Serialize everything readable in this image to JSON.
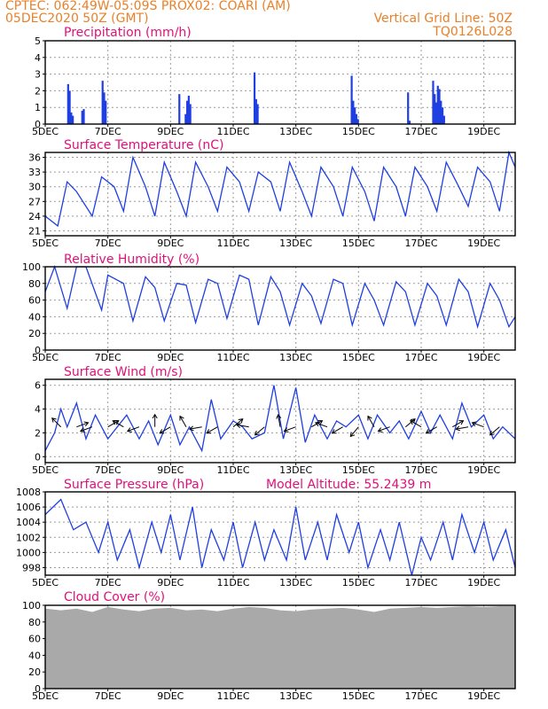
{
  "header": {
    "left_line1": "CPTEC:   062:49W-05:09S   PROX02: COARI (AM)",
    "left_line2": "05DEC2020 50Z (GMT)",
    "right_line1": "Vertical Grid Line: 50Z",
    "right_line2": "TQ0126L028"
  },
  "panels": {
    "precip": {
      "title": "Precipitation (mm/h)"
    },
    "temp": {
      "title": "Surface Temperature (nC)"
    },
    "rh": {
      "title": "Relative Humidity (%)"
    },
    "wind": {
      "title": "Surface Wind (m/s)"
    },
    "pres": {
      "title": "Surface Pressure (hPa)",
      "extra": "Model Altitude: 55.2439 m"
    },
    "cloud": {
      "title": "Cloud Cover (%)"
    }
  },
  "colors": {
    "line": "#1f3fe0",
    "bar": "#1f3fe0",
    "cloud": "#a9a9a9",
    "header": "#e8812a",
    "title": "#e0107a"
  },
  "chart_data": [
    {
      "type": "bar",
      "title": "Precipitation (mm/h)",
      "x_ticks": [
        "5DEC",
        "7DEC",
        "9DEC",
        "11DEC",
        "13DEC",
        "15DEC",
        "17DEC",
        "19DEC"
      ],
      "ylim": [
        0,
        5
      ],
      "y_ticks": [
        0,
        1,
        2,
        3,
        4,
        5
      ],
      "grid": true,
      "x_day": [
        0.7,
        0.75,
        0.8,
        0.85,
        1.15,
        1.2,
        1.8,
        1.85,
        1.9,
        4.25,
        4.45,
        4.5,
        4.55,
        4.6,
        6.65,
        6.7,
        6.75,
        9.75,
        9.8,
        9.85,
        9.9,
        9.95,
        11.55,
        11.6,
        12.35,
        12.4,
        12.45,
        12.5,
        12.55,
        12.6,
        12.65,
        12.7
      ],
      "values": [
        2.4,
        2.0,
        0.7,
        0.5,
        0.8,
        0.9,
        2.6,
        1.9,
        1.4,
        1.8,
        0.6,
        1.4,
        1.7,
        1.2,
        3.1,
        1.5,
        1.2,
        2.9,
        1.4,
        1.0,
        0.6,
        0.3,
        1.9,
        0.2,
        2.6,
        1.8,
        1.3,
        2.3,
        2.1,
        1.4,
        1.0,
        0.5
      ]
    },
    {
      "type": "line",
      "title": "Surface Temperature (nC)",
      "x_ticks": [
        "5DEC",
        "7DEC",
        "9DEC",
        "11DEC",
        "13DEC",
        "15DEC",
        "17DEC",
        "19DEC"
      ],
      "ylim": [
        20,
        37
      ],
      "y_ticks": [
        21,
        24,
        27,
        30,
        33,
        36
      ],
      "grid": true,
      "x_day": [
        0,
        0.4,
        0.7,
        1.0,
        1.5,
        1.8,
        2.2,
        2.5,
        2.8,
        3.2,
        3.5,
        3.8,
        4.2,
        4.5,
        4.8,
        5.2,
        5.5,
        5.8,
        6.2,
        6.5,
        6.8,
        7.2,
        7.5,
        7.8,
        8.2,
        8.5,
        8.8,
        9.2,
        9.5,
        9.8,
        10.2,
        10.5,
        10.8,
        11.2,
        11.5,
        11.8,
        12.2,
        12.5,
        12.8,
        13.2,
        13.5,
        13.8,
        14.2,
        14.5,
        14.8,
        15.0
      ],
      "values": [
        24,
        22,
        31,
        29,
        24,
        32,
        30,
        25,
        36,
        30,
        24,
        35,
        29,
        24,
        35,
        30,
        25,
        34,
        31,
        25,
        33,
        31,
        25,
        35,
        29,
        24,
        34,
        30,
        24,
        34,
        29,
        23,
        34,
        30,
        24,
        34,
        30,
        25,
        35,
        30,
        26,
        34,
        31,
        25,
        37,
        34
      ]
    },
    {
      "type": "line",
      "title": "Relative Humidity (%)",
      "x_ticks": [
        "5DEC",
        "7DEC",
        "9DEC",
        "11DEC",
        "13DEC",
        "15DEC",
        "17DEC",
        "19DEC"
      ],
      "ylim": [
        0,
        100
      ],
      "y_ticks": [
        0,
        20,
        40,
        60,
        80,
        100
      ],
      "grid": true,
      "x_day": [
        0,
        0.3,
        0.7,
        1.0,
        1.3,
        1.8,
        2.0,
        2.5,
        2.8,
        3.2,
        3.5,
        3.8,
        4.2,
        4.5,
        4.8,
        5.2,
        5.5,
        5.8,
        6.2,
        6.5,
        6.8,
        7.2,
        7.5,
        7.8,
        8.2,
        8.5,
        8.8,
        9.2,
        9.5,
        9.8,
        10.2,
        10.5,
        10.8,
        11.2,
        11.5,
        11.8,
        12.2,
        12.5,
        12.8,
        13.2,
        13.5,
        13.8,
        14.2,
        14.5,
        14.8,
        15.0
      ],
      "values": [
        70,
        100,
        50,
        100,
        100,
        48,
        90,
        80,
        35,
        88,
        75,
        35,
        80,
        78,
        33,
        85,
        80,
        38,
        90,
        85,
        30,
        88,
        70,
        30,
        80,
        65,
        32,
        85,
        80,
        30,
        80,
        60,
        30,
        82,
        70,
        30,
        80,
        65,
        30,
        85,
        70,
        28,
        80,
        60,
        28,
        40
      ]
    },
    {
      "type": "line",
      "title": "Surface Wind (m/s)",
      "x_ticks": [
        "5DEC",
        "7DEC",
        "9DEC",
        "11DEC",
        "13DEC",
        "15DEC",
        "17DEC",
        "19DEC"
      ],
      "ylim": [
        -0.5,
        6.5
      ],
      "y_ticks": [
        0,
        2,
        4,
        6
      ],
      "grid": true,
      "x_day": [
        0,
        0.3,
        0.5,
        0.7,
        1.0,
        1.3,
        1.6,
        2.0,
        2.3,
        2.6,
        3.0,
        3.3,
        3.6,
        4.0,
        4.3,
        4.6,
        5.0,
        5.3,
        5.6,
        6.0,
        6.3,
        6.6,
        7.0,
        7.3,
        7.6,
        8.0,
        8.3,
        8.6,
        9.0,
        9.3,
        9.6,
        10.0,
        10.3,
        10.6,
        11.0,
        11.3,
        11.6,
        12.0,
        12.3,
        12.6,
        13.0,
        13.3,
        13.6,
        14.0,
        14.3,
        14.6,
        15.0
      ],
      "values": [
        0.5,
        2.0,
        4.0,
        2.5,
        4.5,
        1.5,
        3.5,
        1.5,
        2.5,
        3.5,
        1.5,
        3.0,
        1.0,
        3.5,
        1.0,
        2.5,
        0.5,
        4.8,
        1.5,
        3.0,
        2.5,
        1.5,
        2.0,
        6.0,
        1.5,
        5.8,
        1.2,
        3.5,
        1.5,
        3.0,
        2.5,
        3.5,
        1.5,
        3.5,
        2.0,
        3.0,
        1.5,
        3.8,
        2.0,
        3.5,
        1.5,
        4.5,
        2.5,
        3.5,
        1.5,
        2.5,
        1.5
      ],
      "arrows_x_day": [
        0.5,
        1.0,
        1.5,
        2.0,
        2.5,
        3.0,
        3.5,
        4.0,
        4.5,
        5.0,
        5.5,
        6.0,
        6.5,
        7.0,
        7.5,
        8.0,
        8.5,
        9.0,
        9.5,
        10.0,
        10.5,
        11.0,
        11.5,
        12.0,
        12.5,
        13.0,
        13.5,
        14.0,
        14.5
      ],
      "arrows_dir_deg": [
        135,
        20,
        200,
        30,
        150,
        200,
        90,
        210,
        120,
        190,
        210,
        40,
        170,
        220,
        100,
        200,
        30,
        160,
        210,
        230,
        120,
        200,
        40,
        150,
        210,
        30,
        190,
        160,
        220
      ]
    },
    {
      "type": "line",
      "title": "Surface Pressure (hPa)",
      "x_ticks": [
        "5DEC",
        "7DEC",
        "9DEC",
        "11DEC",
        "13DEC",
        "15DEC",
        "17DEC",
        "19DEC"
      ],
      "ylim": [
        997,
        1008
      ],
      "y_ticks": [
        998,
        1000,
        1002,
        1004,
        1006,
        1008
      ],
      "grid": true,
      "x_day": [
        0,
        0.5,
        0.9,
        1.3,
        1.7,
        2.0,
        2.3,
        2.7,
        3.0,
        3.4,
        3.7,
        4.0,
        4.3,
        4.7,
        5.0,
        5.3,
        5.7,
        6.0,
        6.3,
        6.7,
        7.0,
        7.3,
        7.7,
        8.0,
        8.3,
        8.7,
        9.0,
        9.3,
        9.7,
        10.0,
        10.3,
        10.7,
        11.0,
        11.3,
        11.7,
        12.0,
        12.3,
        12.7,
        13.0,
        13.3,
        13.7,
        14.0,
        14.3,
        14.7,
        15.0
      ],
      "values": [
        1005,
        1007,
        1003,
        1004,
        1000,
        1004,
        999,
        1003,
        998,
        1004,
        1000,
        1005,
        999,
        1006,
        998,
        1003,
        999,
        1004,
        998,
        1004,
        999,
        1003,
        999,
        1006,
        999,
        1004,
        999,
        1005,
        1000,
        1004,
        998,
        1003,
        999,
        1004,
        997,
        1002,
        999,
        1004,
        999,
        1005,
        1000,
        1004,
        999,
        1003,
        998
      ]
    },
    {
      "type": "area",
      "title": "Cloud Cover (%)",
      "x_ticks": [
        "5DEC",
        "7DEC",
        "9DEC",
        "11DEC",
        "13DEC",
        "15DEC",
        "17DEC",
        "19DEC"
      ],
      "ylim": [
        0,
        100
      ],
      "y_ticks": [
        0,
        20,
        40,
        60,
        80,
        100
      ],
      "grid": true,
      "x_day": [
        0,
        0.5,
        1.0,
        1.5,
        2.0,
        2.5,
        3.0,
        3.5,
        4.0,
        4.5,
        5.0,
        5.5,
        6.0,
        6.5,
        7.0,
        7.5,
        8.0,
        8.5,
        9.0,
        9.5,
        10.0,
        10.5,
        11.0,
        11.5,
        12.0,
        12.5,
        13.0,
        13.5,
        14.0,
        14.5,
        15.0
      ],
      "values": [
        96,
        94,
        96,
        92,
        98,
        95,
        93,
        96,
        97,
        94,
        95,
        93,
        96,
        98,
        97,
        94,
        93,
        95,
        96,
        97,
        95,
        92,
        96,
        97,
        98,
        97,
        98,
        99,
        98,
        99,
        99
      ]
    }
  ]
}
